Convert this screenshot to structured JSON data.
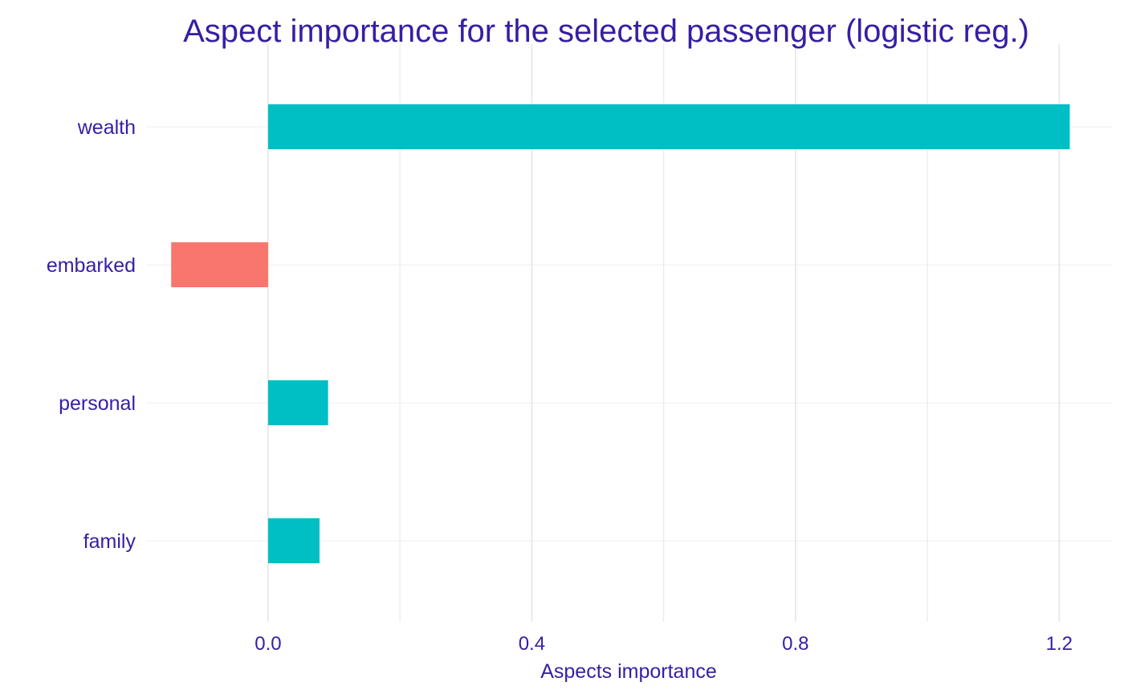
{
  "chart_data": {
    "type": "bar",
    "orientation": "horizontal",
    "title": "Aspect importance for the selected passenger (logistic reg.)",
    "xlabel": "Aspects importance",
    "ylabel": "",
    "categories": [
      "wealth",
      "embarked",
      "personal",
      "family"
    ],
    "values": [
      1.216,
      -0.147,
      0.091,
      0.078
    ],
    "xlim": [
      -0.185,
      1.28
    ],
    "xticks": [
      0.0,
      0.4,
      0.8,
      1.2
    ],
    "xtick_labels": [
      "0.0",
      "0.4",
      "0.8",
      "1.2"
    ],
    "grid": true,
    "legend": "none",
    "colors": {
      "positive": "#00BFC4",
      "negative": "#F8766D",
      "text": "#371EA3",
      "grid_major": "#E5E5E5",
      "grid_minor": "#F2F2F2"
    }
  }
}
